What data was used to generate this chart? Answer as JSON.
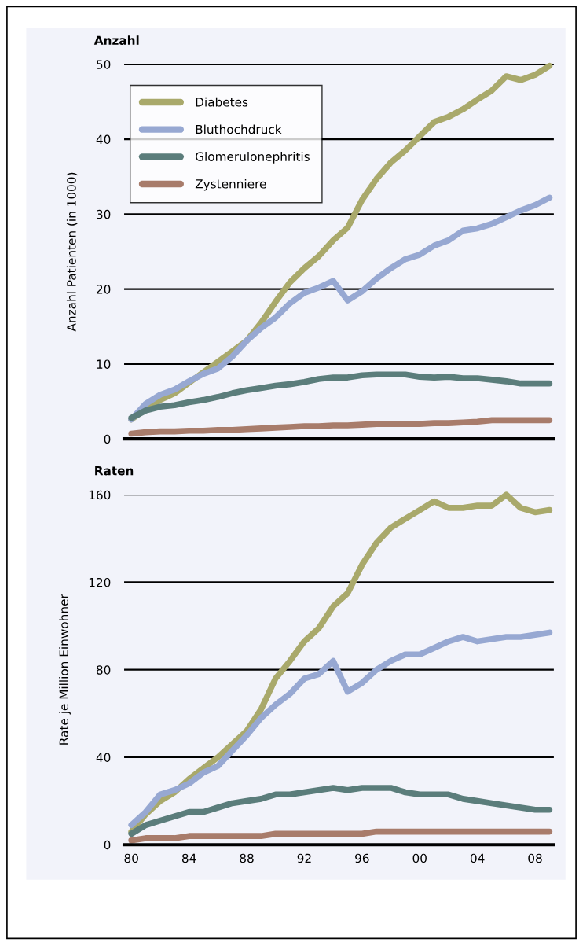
{
  "chart_data": [
    {
      "type": "line",
      "title": "Anzahl",
      "ylabel": "Anzahl Patienten (in 1000)",
      "x": [
        1980,
        1981,
        1982,
        1983,
        1984,
        1985,
        1986,
        1987,
        1988,
        1989,
        1990,
        1991,
        1992,
        1993,
        1994,
        1995,
        1996,
        1997,
        1998,
        1999,
        2000,
        2001,
        2002,
        2003,
        2004,
        2005,
        2006,
        2007,
        2008,
        2009
      ],
      "series": [
        {
          "name": "Diabetes",
          "color": "#a9a96b",
          "values": [
            2.6,
            4.0,
            5.2,
            6.1,
            7.5,
            8.9,
            10.3,
            11.7,
            13.1,
            15.5,
            18.3,
            20.9,
            22.8,
            24.4,
            26.5,
            28.2,
            31.9,
            34.7,
            36.9,
            38.5,
            40.4,
            42.3,
            43.0,
            44.0,
            45.3,
            46.5,
            48.4,
            47.9,
            48.6,
            49.8
          ]
        },
        {
          "name": "Bluthochdruck",
          "color": "#97a8d2",
          "values": [
            2.6,
            4.7,
            5.9,
            6.6,
            7.7,
            8.7,
            9.4,
            11.0,
            13.1,
            14.8,
            16.2,
            18.1,
            19.5,
            20.2,
            21.1,
            18.5,
            19.7,
            21.4,
            22.8,
            24.0,
            24.6,
            25.8,
            26.5,
            27.8,
            28.1,
            28.7,
            29.6,
            30.5,
            31.2,
            32.2
          ]
        },
        {
          "name": "Glomerulonephritis",
          "color": "#5b7d7b",
          "values": [
            2.8,
            3.8,
            4.3,
            4.5,
            4.9,
            5.2,
            5.6,
            6.1,
            6.5,
            6.8,
            7.1,
            7.3,
            7.6,
            8.0,
            8.2,
            8.2,
            8.5,
            8.6,
            8.6,
            8.6,
            8.3,
            8.2,
            8.3,
            8.1,
            8.1,
            7.9,
            7.7,
            7.4,
            7.4,
            7.4
          ]
        },
        {
          "name": "Zystenniere",
          "color": "#a87c6b",
          "values": [
            0.7,
            0.9,
            1.0,
            1.0,
            1.1,
            1.1,
            1.2,
            1.2,
            1.3,
            1.4,
            1.5,
            1.6,
            1.7,
            1.7,
            1.8,
            1.8,
            1.9,
            2.0,
            2.0,
            2.0,
            2.0,
            2.1,
            2.1,
            2.2,
            2.3,
            2.5,
            2.5,
            2.5,
            2.5,
            2.5
          ]
        }
      ],
      "xlim": [
        1979.5,
        2009.3
      ],
      "ylim": [
        0,
        50
      ],
      "yticks": [
        0,
        10,
        20,
        30,
        40,
        50
      ],
      "tick_labels": "y",
      "grid": "y",
      "legend": "top left",
      "marker": "none",
      "line_style": "solid"
    },
    {
      "type": "line",
      "title": "Raten",
      "ylabel": "Rate je Million Einwohner",
      "x": [
        1980,
        1981,
        1982,
        1983,
        1984,
        1985,
        1986,
        1987,
        1988,
        1989,
        1990,
        1991,
        1992,
        1993,
        1994,
        1995,
        1996,
        1997,
        1998,
        1999,
        2000,
        2001,
        2002,
        2003,
        2004,
        2005,
        2006,
        2007,
        2008,
        2009
      ],
      "series": [
        {
          "color": "#a9a96b",
          "values": [
            6,
            14,
            20,
            24,
            30,
            35,
            40,
            46,
            52,
            62,
            76,
            84,
            93,
            99,
            109,
            115,
            128,
            138,
            145,
            149,
            153,
            157,
            154,
            154,
            155,
            155,
            160,
            154,
            152,
            153
          ]
        },
        {
          "color": "#97a8d2",
          "values": [
            9,
            15,
            23,
            25,
            28,
            33,
            36,
            43,
            50,
            58,
            64,
            69,
            76,
            78,
            84,
            70,
            74,
            80,
            84,
            87,
            87,
            90,
            93,
            95,
            93,
            94,
            95,
            95,
            96,
            97
          ]
        },
        {
          "color": "#5b7d7b",
          "values": [
            5,
            9,
            11,
            13,
            15,
            15,
            17,
            19,
            20,
            21,
            23,
            23,
            24,
            25,
            26,
            25,
            26,
            26,
            26,
            24,
            23,
            23,
            23,
            21,
            20,
            19,
            18,
            17,
            16,
            16
          ]
        },
        {
          "color": "#a87c6b",
          "values": [
            2,
            3,
            3,
            3,
            4,
            4,
            4,
            4,
            4,
            4,
            5,
            5,
            5,
            5,
            5,
            5,
            5,
            6,
            6,
            6,
            6,
            6,
            6,
            6,
            6,
            6,
            6,
            6,
            6,
            6
          ]
        }
      ],
      "xlim": [
        1979.5,
        2009.3
      ],
      "ylim": [
        0,
        160
      ],
      "yticks": [
        0,
        40,
        80,
        120,
        160
      ],
      "xticks": [
        {
          "value": 1980,
          "label": "80"
        },
        {
          "value": 1984,
          "label": "84"
        },
        {
          "value": 1988,
          "label": "88"
        },
        {
          "value": 1992,
          "label": "92"
        },
        {
          "value": 1996,
          "label": "96"
        },
        {
          "value": 2000,
          "label": "00"
        },
        {
          "value": 2004,
          "label": "04"
        },
        {
          "value": 2008,
          "label": "08"
        }
      ],
      "grid": "y",
      "legend": false,
      "marker": "none",
      "line_style": "solid"
    }
  ]
}
